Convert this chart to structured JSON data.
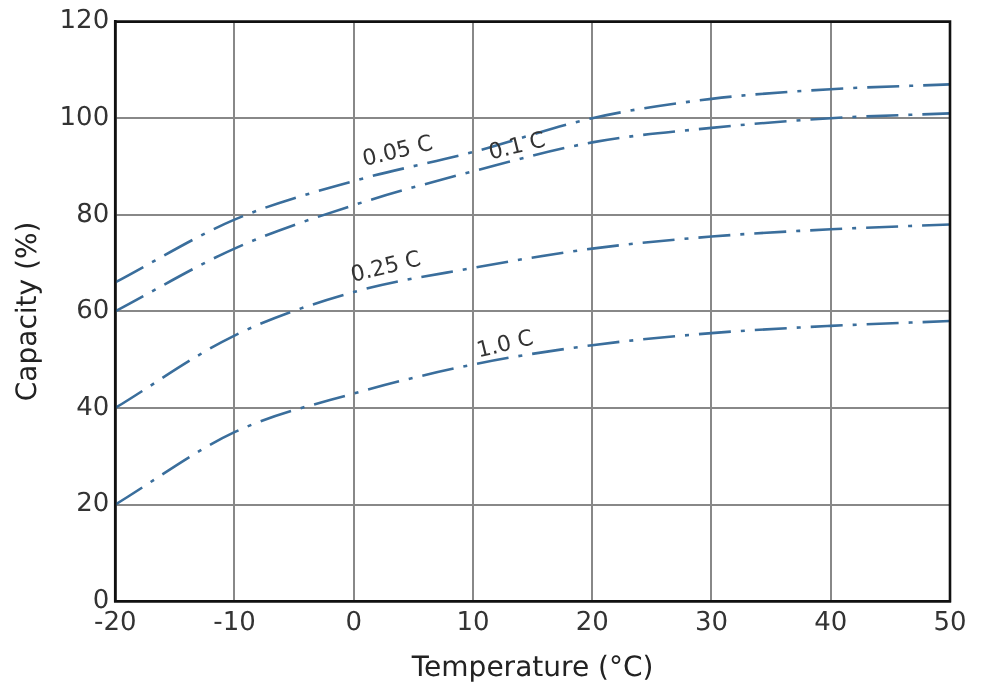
{
  "chart_data": {
    "type": "line",
    "xlabel": "Temperature (°C)",
    "ylabel": "Capacity (%)",
    "x": [
      -20,
      -10,
      0,
      10,
      20,
      30,
      40,
      50
    ],
    "series": [
      {
        "color": "#3a6e9c",
        "values": [
          66,
          79,
          87,
          93,
          100,
          104,
          106,
          107
        ]
      },
      {
        "color": "#3a6e9c",
        "values": [
          60,
          73,
          82,
          89,
          95,
          98,
          100,
          101
        ]
      },
      {
        "color": "#3a6e9c",
        "values": [
          40,
          55,
          64,
          69,
          73,
          75.5,
          77,
          78
        ]
      },
      {
        "color": "#3a6e9c",
        "values": [
          20,
          35,
          43,
          49,
          53,
          55.5,
          57,
          58
        ]
      }
    ],
    "xlim": [
      -20,
      50
    ],
    "xticks": [
      -20,
      -10,
      0,
      10,
      20,
      30,
      40,
      50
    ],
    "ylim": [
      0,
      120
    ],
    "yticks": [
      0,
      20,
      40,
      60,
      80,
      100,
      120
    ],
    "grid": true,
    "legend": false,
    "marker": "none",
    "line_style": "dashed",
    "annotations": [
      {
        "text": "0.05 C",
        "x": 4,
        "y": 90
      },
      {
        "text": "0.1 C",
        "x": 14,
        "y": 91
      },
      {
        "text": "0.25 C",
        "x": 3,
        "y": 66
      },
      {
        "text": "1.0 C",
        "x": 13,
        "y": 50
      }
    ]
  }
}
